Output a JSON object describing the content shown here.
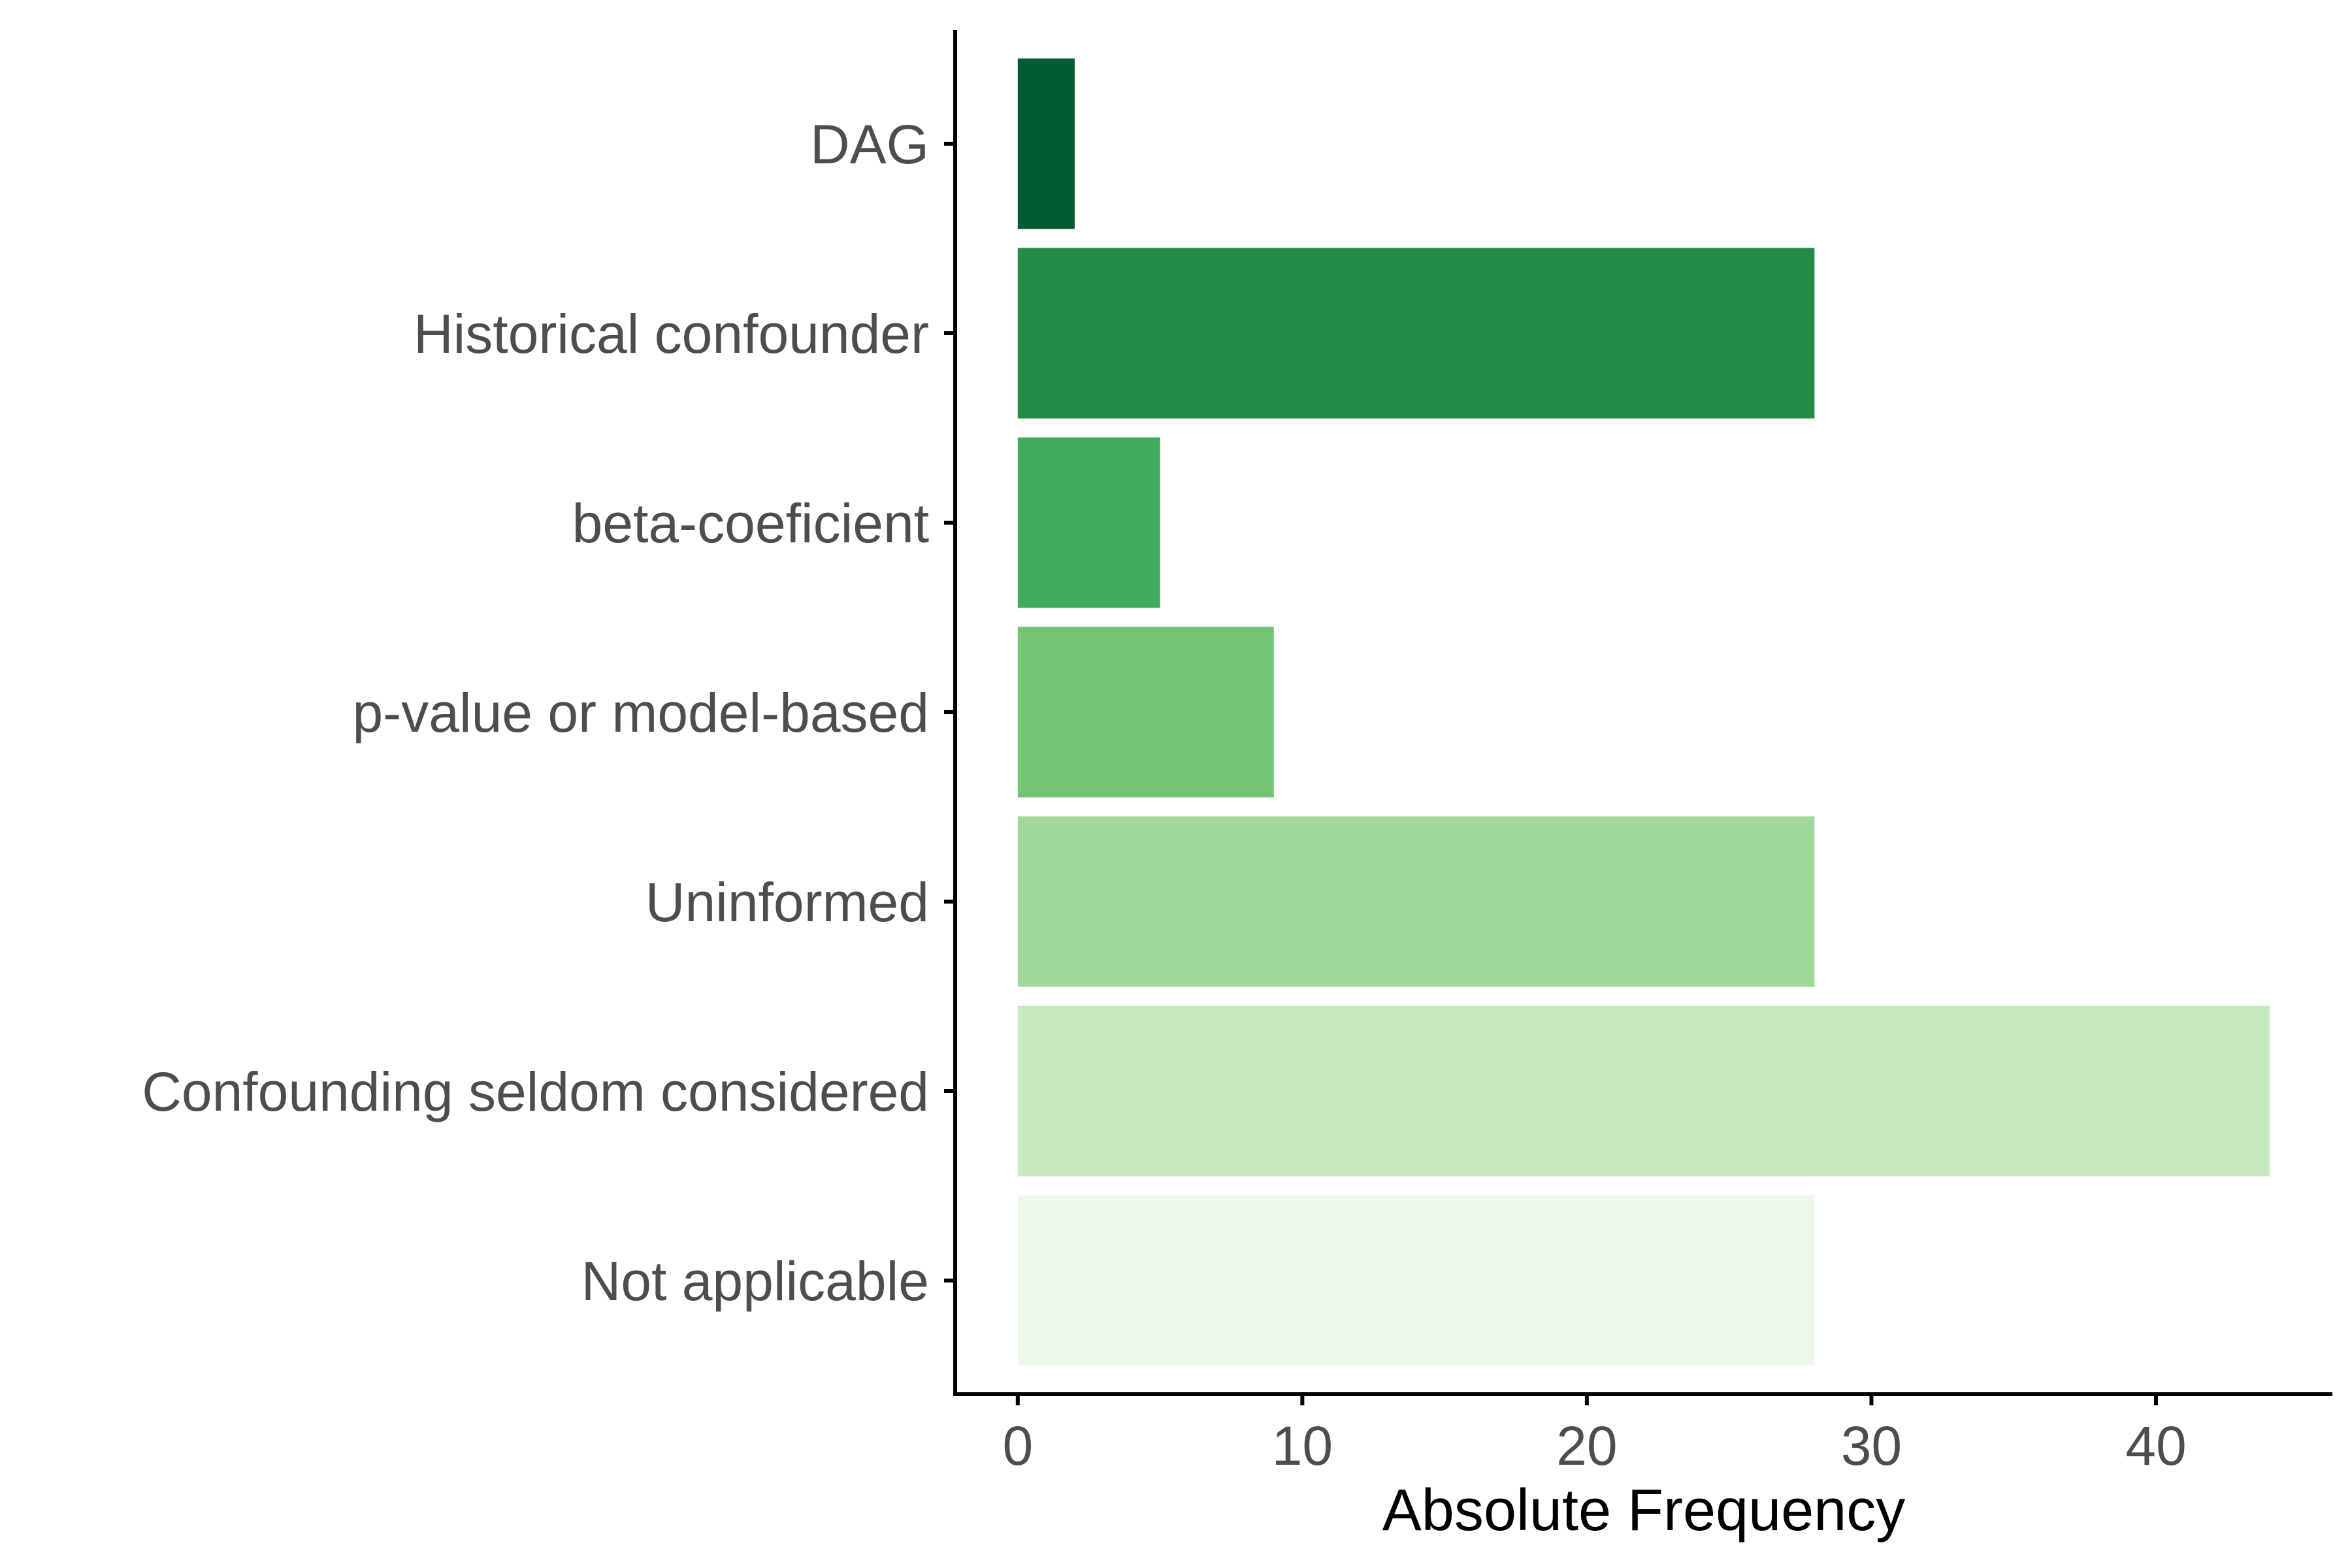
{
  "chart_data": {
    "type": "bar",
    "orientation": "horizontal",
    "categories": [
      "DAG",
      "Historical confounder",
      "beta-coeficient",
      "p-value or model-based",
      "Uninformed",
      "Confounding seldom considered",
      "Not applicable"
    ],
    "values": [
      2,
      28,
      5,
      9,
      28,
      44,
      28
    ],
    "bar_colors": [
      "#005a32",
      "#238b45",
      "#41ab5d",
      "#74c476",
      "#a1d99b",
      "#c7e9c0",
      "#edf8e9"
    ],
    "xlabel": "Absolute Frequency",
    "ylabel": "",
    "title": "",
    "xlim": [
      -2.2,
      46.2
    ],
    "xticks": [
      0,
      10,
      20,
      30,
      40
    ],
    "xtick_labels": [
      "0",
      "10",
      "20",
      "30",
      "40"
    ],
    "grid": false,
    "legend": "none"
  }
}
